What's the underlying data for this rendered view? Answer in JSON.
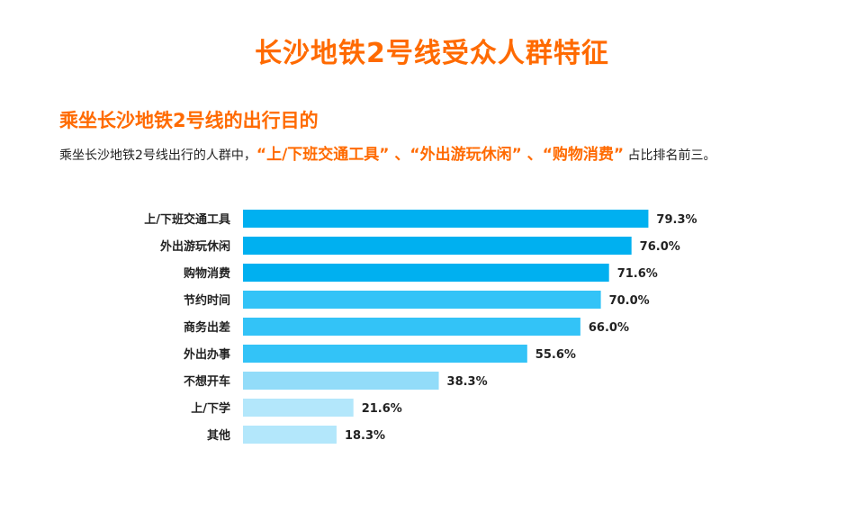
{
  "title": "长沙地铁2号线受众人群特征",
  "section": {
    "title": "乘坐长沙地铁2号线的出行目的",
    "desc_prefix": "乘坐长沙地铁2号线出行的人群中，",
    "highlight_1": "“上/下班交通工具”",
    "sep_1": " 、",
    "highlight_2": "“外出游玩休闲”",
    "sep_2": " 、",
    "highlight_3": "“购物消费”",
    "desc_suffix": " 占比排名前三。"
  },
  "colors": {
    "accent": "#ff6a00",
    "bar_dark": "#00b0f0",
    "bar_mid": "#33c3f7",
    "bar_light": "#92dcf9",
    "bar_lighter": "#b3e7fb"
  },
  "chart_data": {
    "type": "bar",
    "orientation": "horizontal",
    "categories": [
      "上/下班交通工具",
      "外出游玩休闲",
      "购物消费",
      "节约时间",
      "商务出差",
      "外出办事",
      "不想开车",
      "上/下学",
      "其他"
    ],
    "values": [
      79.3,
      76.0,
      71.6,
      70.0,
      66.0,
      55.6,
      38.3,
      21.6,
      18.3
    ],
    "value_labels": [
      "79.3%",
      "76.0%",
      "71.6%",
      "70.0%",
      "66.0%",
      "55.6%",
      "38.3%",
      "21.6%",
      "18.3%"
    ],
    "unit": "%",
    "xlim": [
      0,
      100
    ],
    "grid": false,
    "legend": "none"
  }
}
